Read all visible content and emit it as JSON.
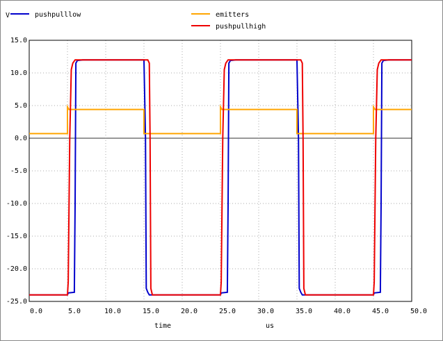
{
  "chart_data": {
    "type": "line",
    "y_label": "V",
    "x_label": "time",
    "x_unit": "us",
    "xlim": [
      0,
      50
    ],
    "ylim": [
      -25,
      15
    ],
    "xticks": [
      {
        "value": 0,
        "label": "0.0"
      },
      {
        "value": 5,
        "label": "5.0"
      },
      {
        "value": 10,
        "label": "10.0"
      },
      {
        "value": 15,
        "label": "15.0"
      },
      {
        "value": 20,
        "label": "20.0"
      },
      {
        "value": 25,
        "label": "25.0"
      },
      {
        "value": 30,
        "label": "30.0"
      },
      {
        "value": 35,
        "label": "35.0"
      },
      {
        "value": 40,
        "label": "40.0"
      },
      {
        "value": 45,
        "label": "45.0"
      },
      {
        "value": 50,
        "label": "50.0"
      }
    ],
    "yticks": [
      {
        "value": 15,
        "label": "15.0"
      },
      {
        "value": 10,
        "label": "10.0"
      },
      {
        "value": 5,
        "label": "5.0"
      },
      {
        "value": 0,
        "label": "0.0"
      },
      {
        "value": -5,
        "label": "-5.0"
      },
      {
        "value": -10,
        "label": "-10.0"
      },
      {
        "value": -15,
        "label": "-15.0"
      },
      {
        "value": -20,
        "label": "-20.0"
      },
      {
        "value": -25,
        "label": "-25.0"
      }
    ],
    "grid": true,
    "series": [
      {
        "name": "pushpulllow",
        "color": "#0000cc",
        "x": [
          0,
          5.0,
          5.1,
          5.9,
          6.0,
          6.1,
          6.3,
          7.0,
          15.0,
          15.2,
          15.3,
          15.5,
          15.7,
          25.0,
          25.1,
          25.9,
          26.0,
          26.1,
          26.3,
          27.0,
          35.0,
          35.2,
          35.3,
          35.5,
          35.7,
          45.0,
          45.1,
          45.9,
          46.0,
          46.1,
          46.3,
          47.0,
          50
        ],
        "values": [
          -24,
          -24,
          -23.7,
          -23.6,
          -10,
          11.5,
          11.9,
          12,
          12,
          0,
          -23,
          -23.6,
          -24,
          -24,
          -23.7,
          -23.6,
          -10,
          11.5,
          11.9,
          12,
          12,
          0,
          -23,
          -23.6,
          -24,
          -24,
          -23.7,
          -23.6,
          -10,
          11.5,
          11.9,
          12,
          12
        ]
      },
      {
        "name": "emitters",
        "color": "#ffa500",
        "x": [
          0,
          5.0,
          5.0,
          5.2,
          15.0,
          15.0,
          25.0,
          25.0,
          25.2,
          35.0,
          35.0,
          45.0,
          45.0,
          45.2,
          50
        ],
        "values": [
          0.7,
          0.7,
          4.8,
          4.4,
          4.4,
          0.7,
          0.7,
          4.8,
          4.4,
          4.4,
          0.7,
          0.7,
          4.8,
          4.4,
          4.4
        ]
      },
      {
        "name": "pushpullhigh",
        "color": "#ee0000",
        "x": [
          0,
          5.0,
          5.1,
          5.3,
          5.5,
          5.7,
          6.0,
          15.5,
          15.7,
          15.8,
          15.9,
          16.1,
          25.0,
          25.1,
          25.3,
          25.5,
          25.7,
          26.0,
          35.5,
          35.7,
          35.8,
          35.9,
          36.1,
          45.0,
          45.1,
          45.3,
          45.5,
          45.7,
          46.0,
          50
        ],
        "values": [
          -24,
          -24,
          -22,
          0,
          10.5,
          11.5,
          12,
          12,
          11.5,
          0,
          -23,
          -24,
          -24,
          -22,
          0,
          10.5,
          11.5,
          12,
          12,
          11.5,
          0,
          -23,
          -24,
          -24,
          -22,
          0,
          10.5,
          11.5,
          12,
          12
        ]
      }
    ]
  }
}
